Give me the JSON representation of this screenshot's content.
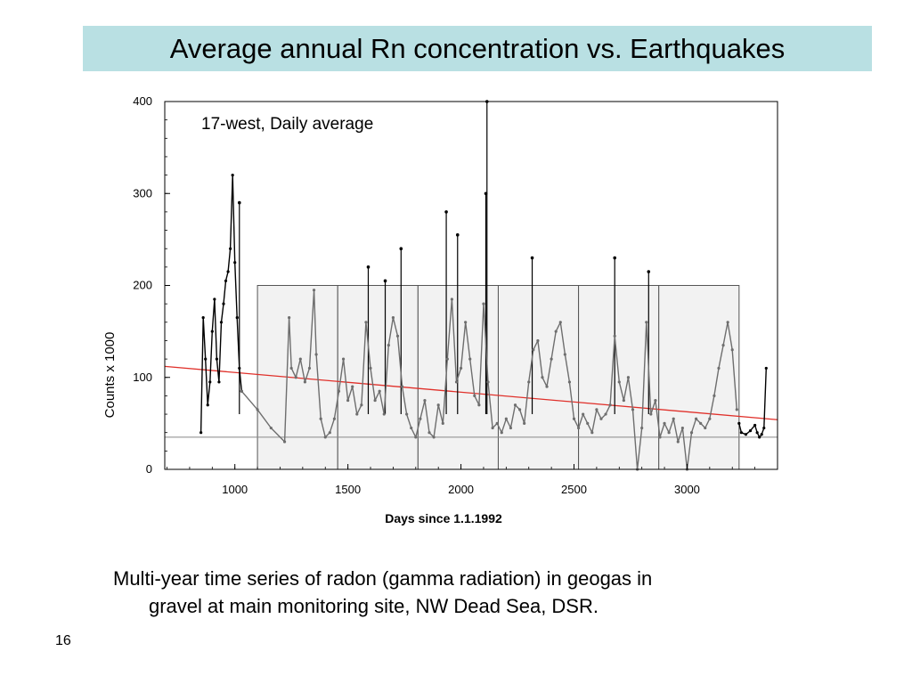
{
  "slide": {
    "title": "Average annual Rn concentration vs. Earthquakes",
    "caption_line1": "Multi-year time series of radon (gamma radiation) in geogas in",
    "caption_line2": "gravel at main monitoring site, NW Dead Sea, DSR.",
    "page_number": "16",
    "colors": {
      "title_background": "#b9e0e3",
      "series_early_late": "#000000",
      "series_middle": "#6e6e6e",
      "trend_line": "#e0302a",
      "annual_box_fill": "#f2f2f2",
      "baseline": "#888888"
    }
  },
  "chart_data": {
    "type": "line",
    "annotation": "17-west, Daily average",
    "xlabel": "Days since 1.1.1992",
    "ylabel": "Counts x 1000",
    "xlim": [
      690,
      3400
    ],
    "ylim": [
      0,
      400
    ],
    "xticks": [
      1000,
      1500,
      2000,
      2500,
      3000
    ],
    "yticks": [
      0,
      100,
      200,
      300,
      400
    ],
    "grid": false,
    "series": [
      {
        "color": "#000000",
        "x": [
          850,
          860,
          870,
          880,
          890,
          900,
          910,
          920,
          930,
          940,
          950,
          960,
          970,
          980,
          990,
          1000,
          1010,
          1020,
          1030
        ],
        "y": [
          40,
          165,
          120,
          70,
          95,
          150,
          185,
          120,
          95,
          160,
          180,
          205,
          215,
          240,
          320,
          225,
          165,
          110,
          85
        ]
      },
      {
        "color": "#6e6e6e",
        "x": [
          1030,
          1100,
          1160,
          1220,
          1240,
          1250,
          1270,
          1290,
          1310,
          1330,
          1350,
          1360,
          1380,
          1400,
          1420,
          1440,
          1460,
          1480,
          1500,
          1520,
          1540,
          1560,
          1580,
          1600,
          1620,
          1640,
          1660,
          1680,
          1700,
          1720,
          1740,
          1760,
          1780,
          1800,
          1820,
          1840,
          1860,
          1880,
          1900,
          1920,
          1940,
          1960,
          1980,
          2000,
          2020,
          2040,
          2060,
          2080,
          2100,
          2120,
          2140,
          2160,
          2180,
          2200,
          2220,
          2240,
          2260,
          2280,
          2300,
          2320,
          2340,
          2360,
          2380,
          2400,
          2420,
          2440,
          2460,
          2480,
          2500,
          2520,
          2540,
          2560,
          2580,
          2600,
          2620,
          2640,
          2660,
          2680,
          2700,
          2720,
          2740,
          2760,
          2780,
          2800,
          2820,
          2840,
          2860,
          2880,
          2900,
          2920,
          2940,
          2960,
          2980,
          3000,
          3020,
          3040,
          3060,
          3080,
          3100,
          3120,
          3140,
          3160,
          3180,
          3200,
          3220
        ],
        "y": [
          85,
          65,
          45,
          30,
          165,
          110,
          100,
          120,
          95,
          110,
          195,
          125,
          55,
          35,
          40,
          55,
          85,
          120,
          75,
          90,
          60,
          70,
          160,
          110,
          75,
          85,
          60,
          135,
          165,
          145,
          90,
          60,
          45,
          35,
          55,
          75,
          40,
          35,
          70,
          50,
          120,
          185,
          95,
          110,
          160,
          120,
          80,
          70,
          180,
          95,
          45,
          50,
          40,
          55,
          45,
          70,
          65,
          50,
          95,
          130,
          140,
          100,
          90,
          120,
          150,
          160,
          125,
          95,
          55,
          45,
          60,
          50,
          40,
          65,
          55,
          60,
          70,
          145,
          95,
          75,
          100,
          65,
          0,
          45,
          160,
          60,
          75,
          35,
          50,
          40,
          55,
          30,
          45,
          0,
          40,
          55,
          50,
          45,
          55,
          80,
          110,
          135,
          160,
          130,
          65
        ]
      },
      {
        "color": "#000000",
        "x": [
          3230,
          3240,
          3260,
          3280,
          3300,
          3310,
          3320,
          3330,
          3340,
          3350
        ],
        "y": [
          50,
          40,
          38,
          42,
          48,
          40,
          35,
          38,
          45,
          110
        ]
      }
    ],
    "spikes": [
      {
        "x": 2115,
        "y": 400
      },
      {
        "x": 2110,
        "y": 300
      },
      {
        "x": 1935,
        "y": 280
      },
      {
        "x": 1985,
        "y": 255
      },
      {
        "x": 1590,
        "y": 220
      },
      {
        "x": 1735,
        "y": 240
      },
      {
        "x": 1665,
        "y": 205
      },
      {
        "x": 2315,
        "y": 230
      },
      {
        "x": 2680,
        "y": 230
      },
      {
        "x": 2830,
        "y": 215
      },
      {
        "x": 1020,
        "y": 290
      }
    ],
    "trend_line": {
      "x": [
        690,
        3400
      ],
      "y": [
        112,
        54
      ]
    },
    "baseline_y": 35,
    "annual_boxes": [
      {
        "x0": 1100,
        "x1": 1455,
        "y0": 0,
        "y1": 200
      },
      {
        "x0": 1455,
        "x1": 1810,
        "y0": 0,
        "y1": 200
      },
      {
        "x0": 1810,
        "x1": 2165,
        "y0": 0,
        "y1": 200
      },
      {
        "x0": 2165,
        "x1": 2520,
        "y0": 0,
        "y1": 200
      },
      {
        "x0": 2520,
        "x1": 2875,
        "y0": 0,
        "y1": 200
      },
      {
        "x0": 2875,
        "x1": 3230,
        "y0": 0,
        "y1": 200
      }
    ]
  }
}
